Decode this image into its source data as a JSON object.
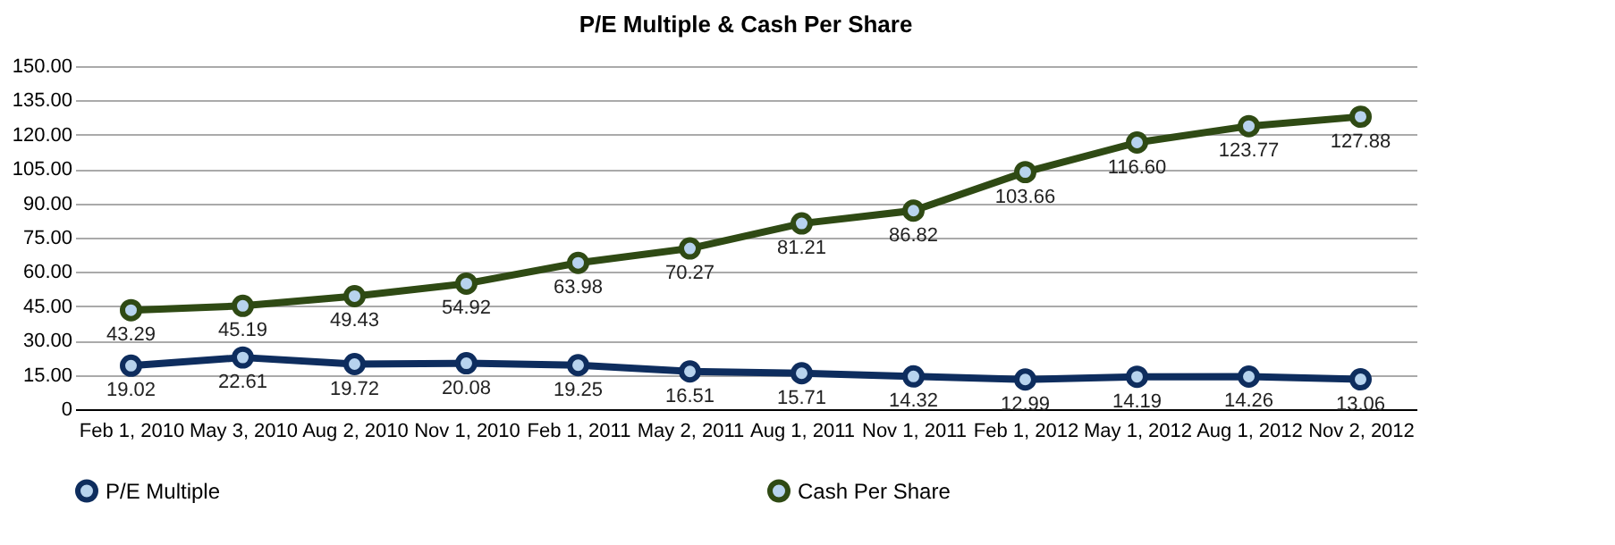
{
  "chart_data": {
    "type": "line",
    "title": "P/E Multiple & Cash Per Share",
    "categories": [
      "Feb 1, 2010",
      "May 3, 2010",
      "Aug 2, 2010",
      "Nov 1, 2010",
      "Feb 1, 2011",
      "May 2, 2011",
      "Aug 1, 2011",
      "Nov 1, 2011",
      "Feb 1, 2012",
      "May 1, 2012",
      "Aug 1, 2012",
      "Nov 2, 2012"
    ],
    "series": [
      {
        "name": "P/E Multiple",
        "color": "#0e2d5e",
        "values": [
          19.02,
          22.61,
          19.72,
          20.08,
          19.25,
          16.51,
          15.71,
          14.32,
          12.99,
          14.19,
          14.26,
          13.06
        ],
        "value_labels": [
          "19.02",
          "22.61",
          "19.72",
          "20.08",
          "19.25",
          "16.51",
          "15.71",
          "14.32",
          "12.99",
          "14.19",
          "14.26",
          "13.06"
        ]
      },
      {
        "name": "Cash Per  Share",
        "color": "#2f4a14",
        "values": [
          43.29,
          45.19,
          49.43,
          54.92,
          63.98,
          70.27,
          81.21,
          86.82,
          103.66,
          116.6,
          123.77,
          127.88
        ],
        "value_labels": [
          "43.29",
          "45.19",
          "49.43",
          "54.92",
          "63.98",
          "70.27",
          "81.21",
          "86.82",
          "103.66",
          "116.60",
          "123.77",
          "127.88"
        ]
      }
    ],
    "ylim": [
      0,
      150
    ],
    "yticks": [
      {
        "value": 0,
        "label": "0"
      },
      {
        "value": 15,
        "label": "15.00"
      },
      {
        "value": 30,
        "label": "30.00"
      },
      {
        "value": 45,
        "label": "45.00"
      },
      {
        "value": 60,
        "label": "60.00"
      },
      {
        "value": 75,
        "label": "75.00"
      },
      {
        "value": 90,
        "label": "90.00"
      },
      {
        "value": 105,
        "label": "105.00"
      },
      {
        "value": 120,
        "label": "120.00"
      },
      {
        "value": 135,
        "label": "135.00"
      },
      {
        "value": 150,
        "label": "150.00"
      }
    ],
    "grid": "y",
    "legend": "bottom",
    "marker": "circle",
    "line_style": "solid"
  }
}
